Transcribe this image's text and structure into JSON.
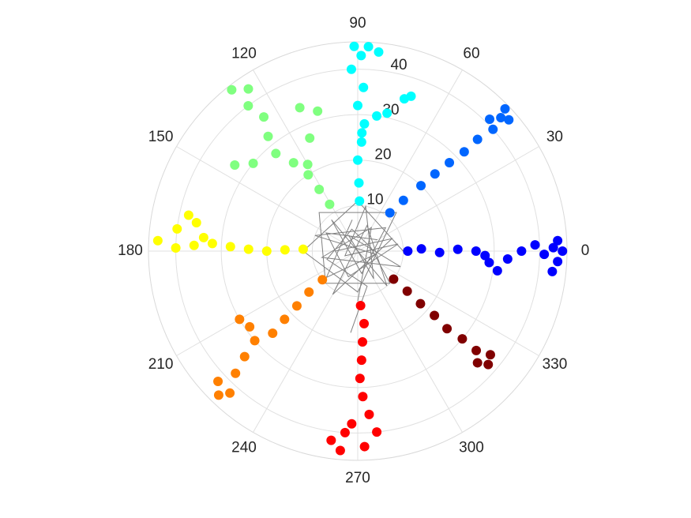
{
  "chart_data": {
    "type": "polar",
    "rlim": [
      0,
      46
    ],
    "rticks": [
      10,
      20,
      30,
      40
    ],
    "rtick_angle": 80,
    "thetaticks": [
      0,
      30,
      60,
      90,
      120,
      150,
      180,
      210,
      240,
      270,
      300,
      330
    ],
    "grid": true,
    "series": [
      {
        "mode": "lines",
        "color": "#808080",
        "theta": [
          30,
          150,
          250,
          10,
          200,
          80,
          300,
          120,
          340,
          190,
          60,
          270
        ],
        "r": [
          5,
          8,
          6,
          9,
          3,
          10,
          7,
          4,
          10,
          8,
          6,
          11
        ]
      },
      {
        "mode": "lines",
        "color": "#808080",
        "theta": [
          100,
          220,
          350,
          160,
          40,
          280,
          130,
          310,
          70,
          240,
          20,
          180
        ],
        "r": [
          7,
          9,
          4,
          10,
          8,
          5,
          9,
          10,
          6,
          11,
          8,
          5
        ]
      },
      {
        "mode": "lines",
        "color": "#808080",
        "theta": [
          0,
          90,
          180,
          270,
          45,
          135,
          225,
          315,
          15,
          105,
          195,
          285,
          265
        ],
        "r": [
          10,
          11,
          12,
          9,
          12,
          12,
          10,
          10,
          3,
          5,
          7,
          8,
          18
        ]
      },
      {
        "mode": "markers",
        "color": "#0000ff",
        "theta": [
          0,
          2,
          359,
          1,
          0,
          358,
          355,
          352,
          357,
          0,
          2,
          359,
          1,
          3,
          0,
          357,
          354
        ],
        "r": [
          11,
          14,
          18,
          22,
          26,
          28,
          29,
          31,
          33,
          36,
          39,
          41,
          43,
          44,
          45,
          44,
          43
        ]
      },
      {
        "mode": "markers",
        "color": "#0066ff",
        "theta": [
          50,
          48,
          46,
          45,
          44,
          43,
          43,
          42,
          43,
          44,
          41,
          45
        ],
        "r": [
          11,
          15,
          20,
          24,
          28,
          32,
          36,
          40,
          43,
          45,
          44,
          41
        ]
      },
      {
        "mode": "markers",
        "color": "#00ffff",
        "theta": [
          88,
          89,
          90,
          88,
          87,
          82,
          78,
          90,
          88,
          92,
          89,
          91,
          87,
          84,
          73,
          71,
          88
        ],
        "r": [
          11,
          15,
          20,
          24,
          28,
          30,
          31,
          32,
          36,
          40,
          43,
          45,
          45,
          44,
          35,
          36,
          26
        ]
      },
      {
        "mode": "markers",
        "color": "#80ff80",
        "theta": [
          121,
          122,
          123,
          126,
          130,
          128,
          125,
          127,
          124,
          128,
          112,
          106,
          113,
          140,
          145,
          120
        ],
        "r": [
          12,
          16,
          20,
          24,
          28,
          32,
          36,
          40,
          43,
          45,
          34,
          32,
          27,
          30,
          33,
          22
        ]
      },
      {
        "mode": "markers",
        "color": "#ffff00",
        "theta": [
          178,
          179,
          180,
          179,
          178,
          177,
          178,
          179,
          177,
          173,
          168,
          170,
          175
        ],
        "r": [
          12,
          16,
          20,
          24,
          28,
          32,
          36,
          40,
          44,
          40,
          38,
          36,
          34
        ]
      },
      {
        "mode": "markers",
        "color": "#ff8000",
        "theta": [
          219,
          220,
          222,
          223,
          224,
          221,
          215,
          210,
          223,
          225,
          223,
          226,
          228
        ],
        "r": [
          10,
          14,
          18,
          22,
          26,
          30,
          29,
          30,
          34,
          38,
          42,
          44,
          42
        ]
      },
      {
        "mode": "markers",
        "color": "#ff0000",
        "theta": [
          273,
          275,
          273,
          272,
          271,
          272,
          274,
          276,
          272,
          265,
          262,
          266,
          268
        ],
        "r": [
          12,
          16,
          20,
          24,
          28,
          32,
          36,
          40,
          43,
          44,
          42,
          40,
          38
        ]
      },
      {
        "mode": "markers",
        "color": "#800000",
        "theta": [
          322,
          321,
          320,
          320,
          319,
          320,
          320,
          322,
          319,
          317
        ],
        "r": [
          10,
          14,
          18,
          22,
          26,
          30,
          34,
          37,
          38,
          36
        ]
      }
    ]
  }
}
